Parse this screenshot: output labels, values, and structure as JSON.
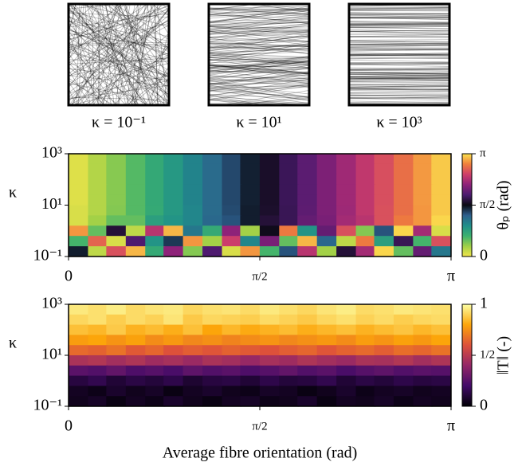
{
  "fibre_images": {
    "labels": [
      "κ = 10⁻¹",
      "κ = 10¹",
      "κ = 10³"
    ]
  },
  "chart_data": [
    {
      "type": "heatmap",
      "y_label": "κ",
      "log_y": true,
      "x": [
        0.08,
        0.24,
        0.39,
        0.55,
        0.71,
        0.86,
        1.02,
        1.18,
        1.34,
        1.49,
        1.65,
        1.81,
        1.96,
        2.12,
        2.28,
        2.44,
        2.59,
        2.75,
        2.91,
        3.06
      ],
      "y": [
        631,
        251,
        100,
        39.8,
        15.8,
        6.31,
        2.51,
        1,
        0.398,
        0.158
      ],
      "z": [
        [
          0.08,
          0.24,
          0.39,
          0.55,
          0.71,
          0.86,
          1.02,
          1.18,
          1.34,
          1.49,
          1.65,
          1.81,
          1.96,
          2.12,
          2.28,
          2.44,
          2.59,
          2.75,
          2.91,
          3.06
        ],
        [
          0.08,
          0.24,
          0.39,
          0.55,
          0.71,
          0.86,
          1.02,
          1.18,
          1.34,
          1.49,
          1.65,
          1.81,
          1.96,
          2.12,
          2.28,
          2.44,
          2.59,
          2.75,
          2.91,
          3.06
        ],
        [
          0.08,
          0.24,
          0.39,
          0.55,
          0.71,
          0.86,
          1.02,
          1.18,
          1.34,
          1.49,
          1.65,
          1.81,
          1.96,
          2.12,
          2.28,
          2.44,
          2.59,
          2.75,
          2.91,
          3.06
        ],
        [
          0.08,
          0.24,
          0.39,
          0.55,
          0.71,
          0.86,
          1.02,
          1.18,
          1.34,
          1.49,
          1.65,
          1.81,
          1.96,
          2.12,
          2.28,
          2.44,
          2.59,
          2.75,
          2.91,
          3.06
        ],
        [
          0.08,
          0.24,
          0.39,
          0.55,
          0.71,
          0.86,
          1.02,
          1.18,
          1.34,
          1.49,
          1.65,
          1.81,
          1.96,
          2.12,
          2.28,
          2.44,
          2.59,
          2.75,
          2.91,
          3.06
        ],
        [
          0.1,
          0.24,
          0.4,
          0.55,
          0.7,
          0.86,
          1.0,
          1.18,
          1.33,
          1.5,
          1.66,
          1.8,
          1.97,
          2.12,
          2.27,
          2.44,
          2.6,
          2.75,
          2.9,
          3.06
        ],
        [
          0.1,
          0.3,
          0.5,
          0.5,
          0.8,
          0.9,
          1.0,
          1.2,
          1.3,
          1.5,
          1.7,
          1.8,
          2.0,
          2.1,
          2.3,
          2.4,
          2.6,
          2.8,
          2.9,
          3.1
        ],
        [
          2.9,
          0.5,
          1.7,
          0.2,
          2.4,
          3.0,
          1.1,
          0.7,
          2.2,
          0.3,
          1.6,
          2.8,
          0.9,
          2.0,
          2.6,
          0.4,
          1.3,
          3.1,
          2.3,
          0.1
        ],
        [
          0.6,
          2.7,
          0.1,
          1.9,
          0.9,
          1.4,
          2.9,
          0.3,
          2.5,
          1.0,
          2.1,
          0.5,
          3.0,
          1.2,
          0.2,
          2.8,
          0.8,
          1.8,
          0.6,
          2.6
        ],
        [
          1.5,
          0.2,
          2.6,
          3.0,
          0.7,
          2.2,
          0.4,
          1.9,
          0.1,
          2.9,
          0.6,
          1.3,
          2.4,
          0.3,
          1.7,
          2.3,
          3.1,
          0.5,
          2.0,
          1.1
        ]
      ],
      "xlim": [
        0,
        3.14159
      ],
      "xticks": [
        0,
        {
          "value": 1.5708,
          "label": "π/2"
        },
        {
          "value": 3.14159,
          "label": "π"
        }
      ],
      "ylim": [
        0.1,
        1000
      ],
      "yticks": [
        {
          "value": 1000,
          "label": "10³"
        },
        {
          "value": 10,
          "label": "10¹"
        },
        {
          "value": 0.1,
          "label": "10⁻¹"
        }
      ],
      "colorbar": {
        "label": "θₚ (rad)",
        "lim": [
          0,
          3.14159
        ],
        "ticks": [
          0,
          {
            "value": 1.5708,
            "label": "π/2"
          },
          {
            "value": 3.14159,
            "label": "π"
          }
        ],
        "colors": [
          "#f3e54a",
          "#9fd047",
          "#3bb16f",
          "#1f8f8a",
          "#2d5f8d",
          "#0a0a12",
          "#4b1a6e",
          "#8e2279",
          "#cf3f6a",
          "#f07f3c",
          "#fbe34e"
        ]
      }
    },
    {
      "type": "heatmap",
      "y_label": "κ",
      "log_y": true,
      "x_label": "Average fibre orientation (rad)",
      "x": [
        0.08,
        0.24,
        0.39,
        0.55,
        0.71,
        0.86,
        1.02,
        1.18,
        1.34,
        1.49,
        1.65,
        1.81,
        1.96,
        2.12,
        2.28,
        2.44,
        2.59,
        2.75,
        2.91,
        3.06
      ],
      "y": [
        631,
        251,
        100,
        39.8,
        15.8,
        6.31,
        2.51,
        1,
        0.398,
        0.158
      ],
      "z": [
        [
          0.95,
          0.93,
          0.96,
          0.92,
          0.94,
          0.95,
          0.91,
          0.93,
          0.94,
          0.92,
          0.95,
          0.93,
          0.91,
          0.94,
          0.96,
          0.92,
          0.93,
          0.95,
          0.94,
          0.93
        ],
        [
          0.91,
          0.93,
          0.89,
          0.92,
          0.9,
          0.94,
          0.88,
          0.91,
          0.9,
          0.89,
          0.92,
          0.9,
          0.88,
          0.91,
          0.93,
          0.9,
          0.92,
          0.89,
          0.91,
          0.92
        ],
        [
          0.86,
          0.84,
          0.88,
          0.83,
          0.85,
          0.82,
          0.86,
          0.8,
          0.84,
          0.81,
          0.83,
          0.85,
          0.82,
          0.84,
          0.86,
          0.83,
          0.85,
          0.87,
          0.84,
          0.86
        ],
        [
          0.78,
          0.8,
          0.76,
          0.79,
          0.74,
          0.77,
          0.73,
          0.75,
          0.72,
          0.74,
          0.76,
          0.73,
          0.75,
          0.77,
          0.74,
          0.78,
          0.76,
          0.79,
          0.77,
          0.8
        ],
        [
          0.66,
          0.64,
          0.68,
          0.62,
          0.65,
          0.6,
          0.63,
          0.61,
          0.64,
          0.62,
          0.6,
          0.63,
          0.65,
          0.61,
          0.64,
          0.66,
          0.63,
          0.67,
          0.65,
          0.68
        ],
        [
          0.46,
          0.48,
          0.44,
          0.47,
          0.43,
          0.45,
          0.42,
          0.46,
          0.44,
          0.41,
          0.45,
          0.43,
          0.47,
          0.44,
          0.42,
          0.46,
          0.45,
          0.48,
          0.44,
          0.47
        ],
        [
          0.26,
          0.24,
          0.28,
          0.23,
          0.25,
          0.22,
          0.27,
          0.24,
          0.26,
          0.23,
          0.25,
          0.28,
          0.24,
          0.26,
          0.22,
          0.25,
          0.27,
          0.24,
          0.26,
          0.25
        ],
        [
          0.12,
          0.15,
          0.1,
          0.13,
          0.11,
          0.14,
          0.09,
          0.12,
          0.13,
          0.1,
          0.14,
          0.11,
          0.12,
          0.15,
          0.1,
          0.13,
          0.11,
          0.14,
          0.12,
          0.13
        ],
        [
          0.06,
          0.04,
          0.08,
          0.05,
          0.07,
          0.03,
          0.06,
          0.08,
          0.05,
          0.04,
          0.07,
          0.06,
          0.03,
          0.05,
          0.08,
          0.04,
          0.06,
          0.07,
          0.05,
          0.06
        ],
        [
          0.05,
          0.07,
          0.03,
          0.06,
          0.04,
          0.08,
          0.05,
          0.03,
          0.06,
          0.07,
          0.04,
          0.05,
          0.08,
          0.03,
          0.06,
          0.05,
          0.07,
          0.04,
          0.06,
          0.05
        ]
      ],
      "xlim": [
        0,
        3.14159
      ],
      "xticks": [
        0,
        {
          "value": 1.5708,
          "label": "π/2"
        },
        {
          "value": 3.14159,
          "label": "π"
        }
      ],
      "ylim": [
        0.1,
        1000
      ],
      "yticks": [
        {
          "value": 1000,
          "label": "10³"
        },
        {
          "value": 10,
          "label": "10¹"
        },
        {
          "value": 0.1,
          "label": "10⁻¹"
        }
      ],
      "colorbar": {
        "label": "‖T‖ (-)",
        "lim": [
          0,
          1
        ],
        "ticks": [
          0,
          {
            "value": 0.5,
            "label": "1/2"
          },
          1
        ],
        "colors": [
          "#000004",
          "#420a68",
          "#932667",
          "#dd513a",
          "#fca50a",
          "#fcffa4"
        ]
      }
    }
  ]
}
